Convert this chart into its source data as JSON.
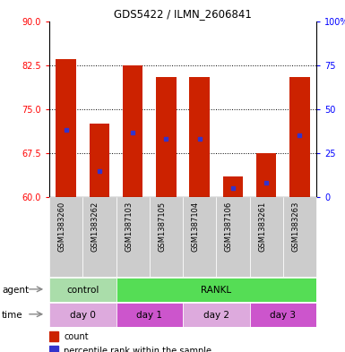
{
  "title": "GDS5422 / ILMN_2606841",
  "samples": [
    "GSM1383260",
    "GSM1383262",
    "GSM1387103",
    "GSM1387105",
    "GSM1387104",
    "GSM1387106",
    "GSM1383261",
    "GSM1383263"
  ],
  "bar_tops": [
    83.5,
    72.5,
    82.5,
    80.5,
    80.5,
    63.5,
    67.5,
    80.5
  ],
  "bar_bottoms": [
    60,
    60,
    60,
    60,
    60,
    60,
    60,
    60
  ],
  "blue_positions": [
    71.5,
    64.5,
    71.0,
    70.0,
    70.0,
    61.5,
    62.5,
    70.5
  ],
  "ylim": [
    60,
    90
  ],
  "yticks_left": [
    60,
    67.5,
    75,
    82.5,
    90
  ],
  "yticks_right_labels": [
    "0",
    "25",
    "50",
    "75",
    "100%"
  ],
  "bar_color": "#cc2200",
  "blue_color": "#3333cc",
  "grid_dotted_vals": [
    67.5,
    75,
    82.5
  ],
  "agent_blocks": [
    {
      "label": "control",
      "start": 0,
      "end": 2,
      "color": "#aaddaa"
    },
    {
      "label": "RANKL",
      "start": 2,
      "end": 8,
      "color": "#55dd55"
    }
  ],
  "time_blocks": [
    {
      "label": "day 0",
      "start": 0,
      "end": 2,
      "color": "#ddaadd"
    },
    {
      "label": "day 1",
      "start": 2,
      "end": 4,
      "color": "#cc55cc"
    },
    {
      "label": "day 2",
      "start": 4,
      "end": 6,
      "color": "#ddaadd"
    },
    {
      "label": "day 3",
      "start": 6,
      "end": 8,
      "color": "#cc55cc"
    }
  ],
  "row_bg_color": "#cccccc",
  "legend_count_color": "#cc2200",
  "legend_blue_color": "#3333cc"
}
